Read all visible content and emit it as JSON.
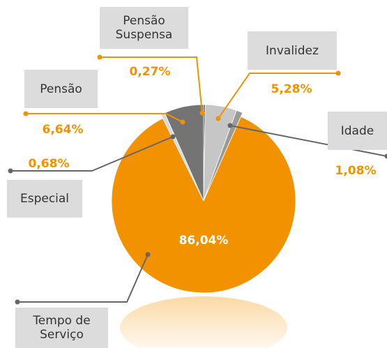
{
  "chart_data": {
    "type": "pie",
    "categories": [
      "Pensão Suspensa",
      "Invalidez",
      "Idade",
      "Tempo de Serviço",
      "Especial",
      "Pensão"
    ],
    "values": [
      0.27,
      5.28,
      1.08,
      86.04,
      0.68,
      6.64
    ],
    "value_labels": [
      "0,27%",
      "5,28%",
      "1,08%",
      "86,04%",
      "0,68%",
      "6,64%"
    ],
    "colors": [
      "#4a4a4a",
      "#c6c6c6",
      "#9a9a9a",
      "#f39200",
      "#dadada",
      "#747474"
    ]
  }
}
